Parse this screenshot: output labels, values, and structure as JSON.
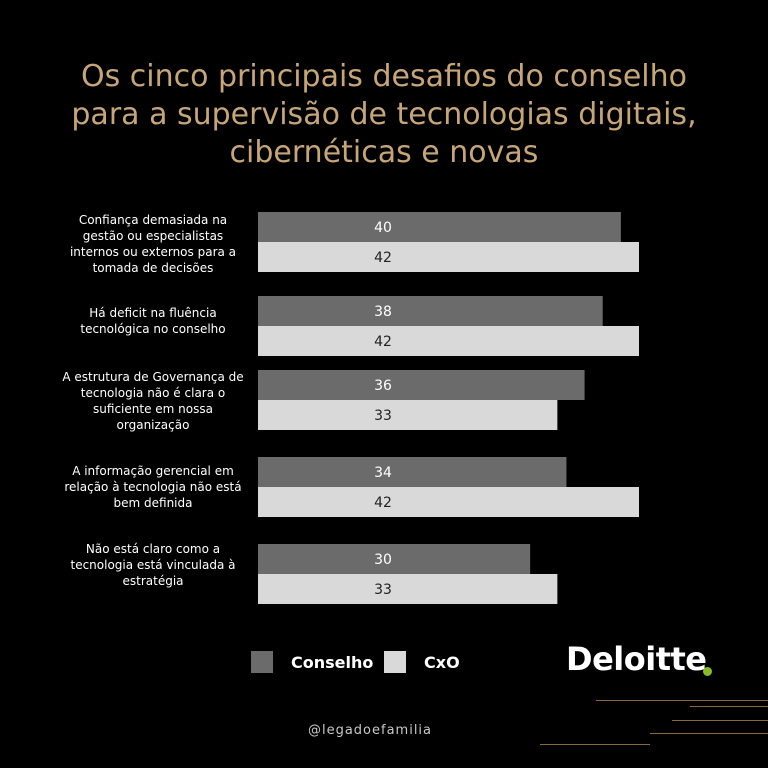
{
  "title_lines": [
    "Os cinco principais desafios do conselho",
    "para a supervisão de tecnologias digitais,",
    "cibernéticas e novas"
  ],
  "chart_data": {
    "type": "bar",
    "orientation": "horizontal",
    "categories": [
      "Confiança demasiada na gestão ou especialistas internos ou externos para a tomada de decisões",
      "Há deficit na fluência tecnológica no conselho",
      "A estrutura de Governança de tecnologia não é clara o suficiente em nossa organização",
      "A informação gerencial em relação à tecnologia não está bem definida",
      "Não está claro como a tecnologia está vinculada à estratégia"
    ],
    "series": [
      {
        "name": "Conselho",
        "color": "#6b6b6b",
        "label_color": "#ffffff",
        "values": [
          40,
          38,
          36,
          34,
          30
        ]
      },
      {
        "name": "CxO",
        "color": "#d9d9d9",
        "label_color": "#222222",
        "values": [
          42,
          42,
          33,
          42,
          33
        ]
      }
    ],
    "xlim": [
      0,
      42
    ],
    "legend": "bottom"
  },
  "legend": {
    "conselho": "Conselho",
    "cxo": "CxO"
  },
  "brand": {
    "name": "Deloitte",
    "dot_color": "#86bc25"
  },
  "handle": "@legadoefamilia"
}
